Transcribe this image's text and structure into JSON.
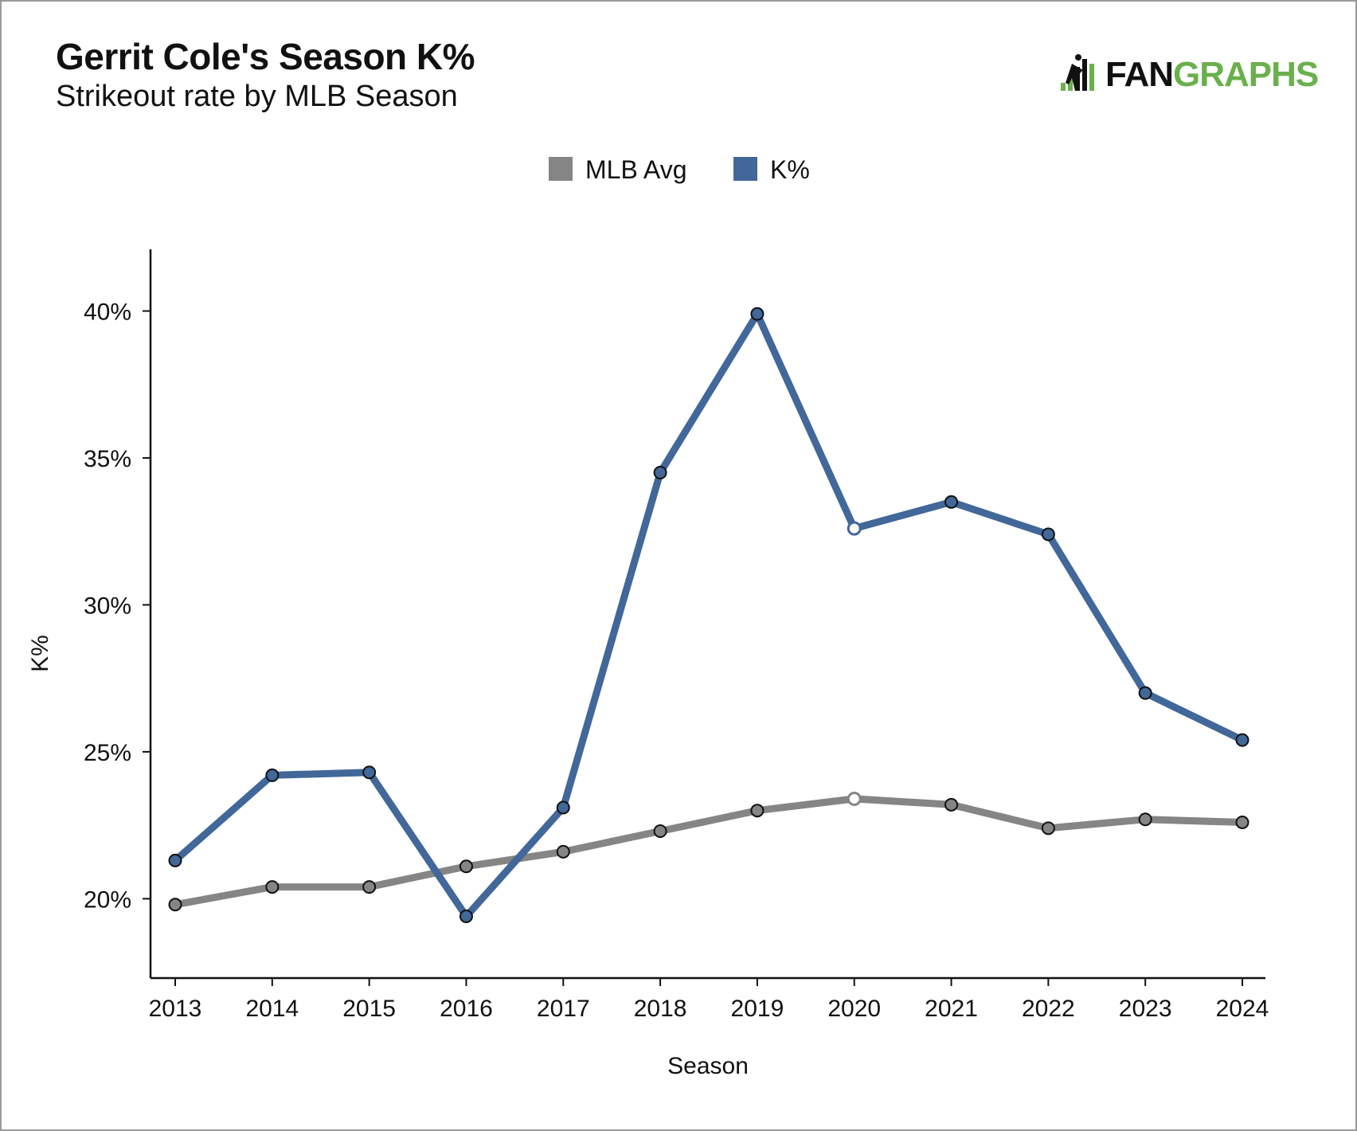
{
  "header": {
    "title": "Gerrit Cole's Season K%",
    "subtitle": "Strikeout rate by MLB Season"
  },
  "logo": {
    "icon": "fangraphs-logo-icon",
    "text_part1": "FAN",
    "text_part2": "GRAPHS",
    "colors": {
      "dark": "#111111",
      "green": "#6ab04c"
    }
  },
  "chart_data": {
    "type": "line",
    "xlabel": "Season",
    "ylabel": "K%",
    "x": [
      2013,
      2014,
      2015,
      2016,
      2017,
      2018,
      2019,
      2020,
      2021,
      2022,
      2023,
      2024
    ],
    "ylim": [
      17.3,
      42.1
    ],
    "yticks": [
      20,
      25,
      30,
      35,
      40
    ],
    "ytick_labels": [
      "20%",
      "25%",
      "30%",
      "35%",
      "40%"
    ],
    "grid": false,
    "legend_position": "top-center",
    "highlight_open_marker_x": 2020,
    "series": [
      {
        "name": "MLB Avg",
        "color": "#858585",
        "values": [
          19.8,
          20.4,
          20.4,
          21.1,
          21.6,
          22.3,
          23.0,
          23.4,
          23.2,
          22.4,
          22.7,
          22.6
        ]
      },
      {
        "name": "K%",
        "color": "#426799",
        "values": [
          21.3,
          24.2,
          24.3,
          19.4,
          23.1,
          34.5,
          39.9,
          32.6,
          33.5,
          32.4,
          27.0,
          25.4
        ]
      }
    ]
  }
}
